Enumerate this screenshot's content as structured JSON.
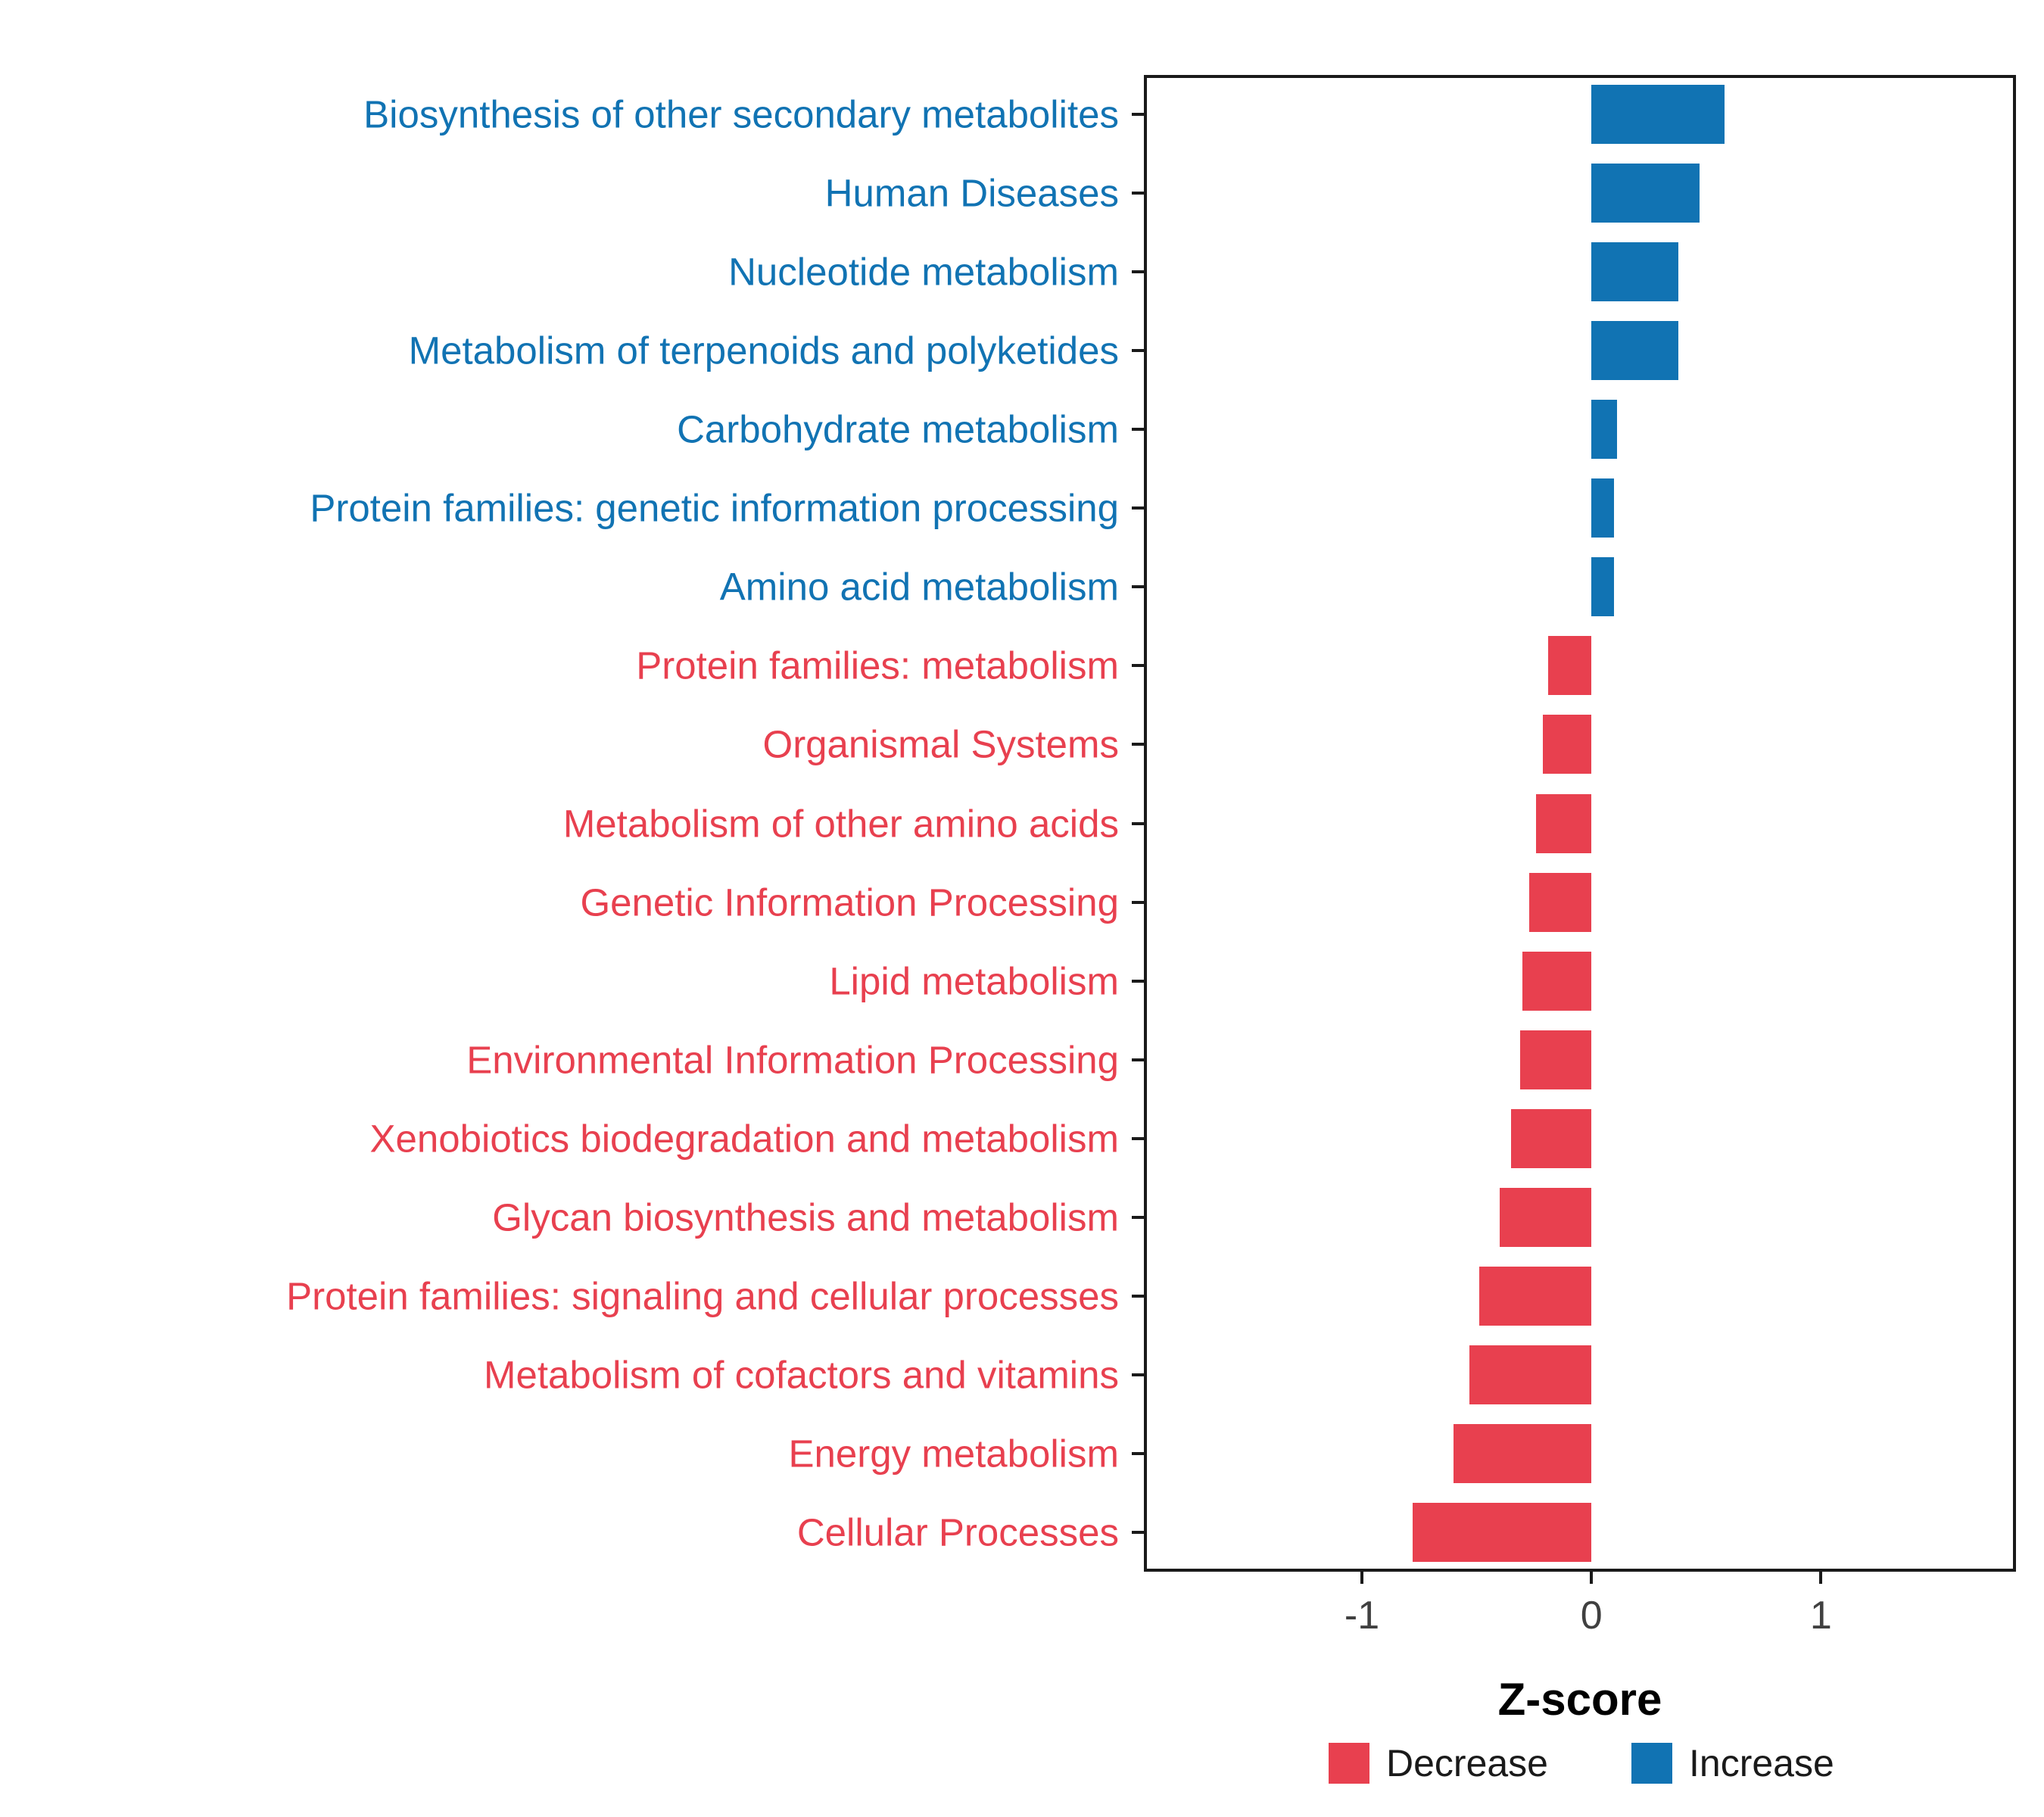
{
  "chart_data": {
    "type": "bar",
    "orientation": "horizontal",
    "title": "",
    "xlabel": "Z-score",
    "ylabel": "",
    "xlim": [
      -1.95,
      1.85
    ],
    "xticks": [
      -1,
      0,
      1
    ],
    "xtick_labels": [
      "-1",
      "0",
      "1"
    ],
    "grid": false,
    "legend_position": "bottom-right",
    "categories": [
      "Biosynthesis of other secondary metabolites",
      "Human Diseases",
      "Nucleotide metabolism",
      "Metabolism of terpenoids and polyketides",
      "Carbohydrate metabolism",
      "Protein families: genetic information processing",
      "Amino acid metabolism",
      "Protein families: metabolism",
      "Organismal Systems",
      "Metabolism of other amino acids",
      "Genetic Information Processing",
      "Lipid metabolism",
      "Environmental Information Processing",
      "Xenobiotics biodegradation and metabolism",
      "Glycan biosynthesis and metabolism",
      "Protein families: signaling and cellular processes",
      "Metabolism of cofactors and vitamins",
      "Energy metabolism",
      "Cellular Processes"
    ],
    "values": [
      0.58,
      0.47,
      0.38,
      0.38,
      0.11,
      0.1,
      0.1,
      -0.19,
      -0.21,
      -0.24,
      -0.27,
      -0.3,
      -0.31,
      -0.35,
      -0.4,
      -0.49,
      -0.53,
      -0.6,
      -0.78
    ],
    "groups": [
      "Increase",
      "Increase",
      "Increase",
      "Increase",
      "Increase",
      "Increase",
      "Increase",
      "Decrease",
      "Decrease",
      "Decrease",
      "Decrease",
      "Decrease",
      "Decrease",
      "Decrease",
      "Decrease",
      "Decrease",
      "Decrease",
      "Decrease",
      "Decrease"
    ],
    "colors": {
      "Decrease": "#E8404F",
      "Increase": "#1173B3"
    },
    "legend": [
      {
        "label": "Decrease",
        "color": "#E8404F"
      },
      {
        "label": "Increase",
        "color": "#1173B3"
      }
    ]
  }
}
